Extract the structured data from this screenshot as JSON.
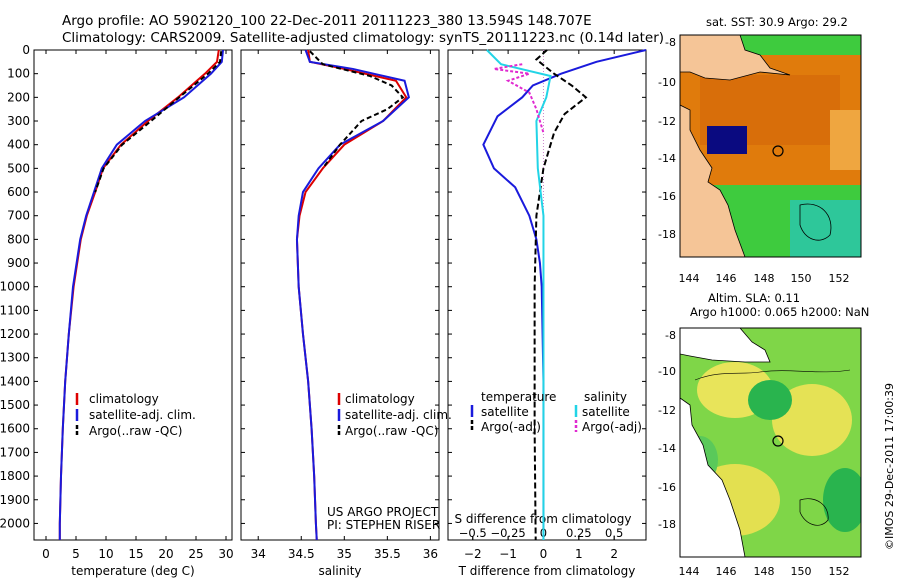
{
  "header": {
    "line1": "Argo profile: AO 5902120_100 22-Dec-2011 20111223_380 13.594S 148.707E",
    "line2": "Climatology: CARS2009. Satellite-adjusted climatology: synTS_20111223.nc (0.14d later)"
  },
  "credits": {
    "project": "US ARGO PROJECT",
    "pi": "PI: STEPHEN RISER",
    "imos": "©IMOS 29-Dec-2011 17:00:39"
  },
  "colors": {
    "climatology": "#dd0000",
    "satellite": "#1a1adc",
    "argo": "#000000",
    "sal_satellite": "#22d4e6",
    "sal_argo": "#e02ad0",
    "land": "#f5c597",
    "sst_warm": "#e07b0c",
    "sst_cool": "#3ecb3e"
  },
  "chart_data": [
    {
      "type": "line",
      "name": "temperature-profile",
      "xlabel": "temperature (deg C)",
      "ylabel": "",
      "xlim": [
        -2,
        31
      ],
      "ylim": [
        2070,
        0
      ],
      "xticks": [
        0,
        5,
        10,
        15,
        20,
        25,
        30
      ],
      "xtick_labels": [
        "0",
        "5",
        "10",
        "15",
        "20",
        "25",
        "30"
      ],
      "yticks": [
        0,
        100,
        200,
        300,
        400,
        500,
        600,
        700,
        800,
        900,
        1000,
        1100,
        1200,
        1300,
        1400,
        1500,
        1600,
        1700,
        1800,
        1900,
        2000
      ],
      "ytick_labels": [
        "0",
        "100",
        "200",
        "300",
        "400",
        "500",
        "600",
        "700",
        "800",
        "900",
        "1000",
        "1100",
        "1200",
        "1300",
        "1400",
        "1500",
        "1600",
        "1700",
        "1800",
        "1900",
        "2000"
      ],
      "legend": [
        "climatology",
        "satellite-adj. clim.",
        "Argo(..raw -QC)"
      ],
      "series": [
        {
          "name": "climatology",
          "color": "#dd0000",
          "dash": "",
          "x": [
            28.8,
            28.5,
            26.5,
            22,
            17,
            12.5,
            9.5,
            8.2,
            6.8,
            5.8,
            4.6,
            3.8,
            3.2,
            2.8,
            2.5,
            2.3,
            2.3
          ],
          "y": [
            0,
            50,
            100,
            200,
            300,
            400,
            500,
            600,
            700,
            800,
            1000,
            1200,
            1400,
            1600,
            1800,
            2000,
            2070
          ]
        },
        {
          "name": "satellite-adj. clim.",
          "color": "#1a1adc",
          "dash": "",
          "x": [
            29.5,
            29.3,
            27.5,
            23,
            16.5,
            11.8,
            9.3,
            8.0,
            6.7,
            5.7,
            4.5,
            3.8,
            3.2,
            2.8,
            2.5,
            2.3,
            2.3
          ],
          "y": [
            0,
            50,
            100,
            200,
            300,
            400,
            500,
            600,
            700,
            800,
            1000,
            1200,
            1400,
            1600,
            1800,
            2000,
            2070
          ]
        },
        {
          "name": "Argo(..raw -QC)",
          "color": "#000000",
          "dash": "5,3",
          "x": [
            29.2,
            29.0,
            27.0,
            22.2,
            17.5,
            12.7,
            9.6,
            8.2
          ],
          "y": [
            5,
            50,
            100,
            200,
            300,
            400,
            500,
            600
          ]
        }
      ]
    },
    {
      "type": "line",
      "name": "salinity-profile",
      "xlabel": "salinity",
      "xlim": [
        33.8,
        36.1
      ],
      "ylim": [
        2070,
        0
      ],
      "xticks": [
        34,
        34.5,
        35,
        35.5,
        36
      ],
      "xtick_labels": [
        "34",
        "34.5",
        "35",
        "35.5",
        "36"
      ],
      "legend": [
        "climatology",
        "satellite-adj. clim.",
        "Argo(..raw -QC)"
      ],
      "series": [
        {
          "name": "climatology",
          "color": "#dd0000",
          "dash": "",
          "x": [
            34.58,
            34.6,
            35.0,
            35.6,
            35.72,
            35.45,
            35.0,
            34.75,
            34.55,
            34.48,
            34.45,
            34.47,
            34.52,
            34.58,
            34.62,
            34.65,
            34.67,
            34.68
          ],
          "y": [
            0,
            50,
            80,
            130,
            200,
            300,
            400,
            500,
            600,
            700,
            800,
            1000,
            1200,
            1400,
            1600,
            1800,
            2000,
            2070
          ]
        },
        {
          "name": "satellite-adj. clim.",
          "color": "#1a1adc",
          "dash": "",
          "x": [
            34.55,
            34.6,
            35.1,
            35.7,
            35.75,
            35.45,
            34.95,
            34.7,
            34.52,
            34.47,
            34.45,
            34.47,
            34.52,
            34.58,
            34.62,
            34.65,
            34.67,
            34.68
          ],
          "y": [
            0,
            50,
            80,
            130,
            200,
            300,
            400,
            500,
            600,
            700,
            800,
            1000,
            1200,
            1400,
            1600,
            1800,
            2000,
            2070
          ]
        },
        {
          "name": "Argo(..raw -QC)",
          "color": "#000000",
          "dash": "5,3",
          "x": [
            34.6,
            34.75,
            35.3,
            35.55,
            35.68,
            35.5,
            35.2,
            34.95,
            34.75
          ],
          "y": [
            5,
            60,
            110,
            150,
            200,
            250,
            300,
            400,
            500
          ]
        }
      ]
    },
    {
      "type": "line",
      "name": "difference-profile",
      "xlabel": "T difference from climatology",
      "x2label": "S difference from climatology",
      "xlim": [
        -2.7,
        2.9
      ],
      "ylim": [
        2070,
        0
      ],
      "xticks": [
        -2,
        -1,
        0,
        1,
        2
      ],
      "xtick_labels": [
        "−2",
        "−1",
        "0",
        "1",
        "2"
      ],
      "x2ticks": [
        -0.5,
        -0.25,
        0,
        0.25,
        0.5
      ],
      "x2tick_labels": [
        "−0.5",
        "−0.25",
        "0",
        "0.25",
        "0.5"
      ],
      "legend_title_t": "temperature",
      "legend_title_s": "salinity",
      "legend": [
        "satellite",
        "Argo(-adj)",
        "satellite",
        "Argo(-adj)"
      ],
      "series": [
        {
          "name": "T satellite",
          "color": "#1a1adc",
          "dash": "",
          "x": [
            2.9,
            1.5,
            0.5,
            -0.3,
            -0.6,
            -1.3,
            -1.7,
            -1.4,
            -0.8,
            -0.4,
            -0.2,
            -0.1,
            -0.05,
            0,
            0
          ],
          "y": [
            0,
            50,
            100,
            150,
            200,
            280,
            400,
            500,
            580,
            700,
            800,
            900,
            1000,
            1400,
            2070
          ]
        },
        {
          "name": "T Argo(-adj)",
          "color": "#000000",
          "dash": "6,3",
          "x": [
            0.1,
            -0.2,
            0.3,
            0.8,
            1.2,
            0.6,
            0.3,
            0.0,
            -0.2,
            -0.25,
            -0.25,
            -0.22
          ],
          "y": [
            0,
            40,
            100,
            150,
            200,
            270,
            350,
            500,
            700,
            1000,
            1600,
            2070
          ]
        },
        {
          "name": "S satellite",
          "color": "#22d4e6",
          "dash": "",
          "x": [
            -0.4,
            -0.3,
            0.05,
            0.02,
            -0.05,
            -0.04,
            0.0,
            0.0
          ],
          "y": [
            0,
            60,
            110,
            200,
            300,
            500,
            700,
            2070
          ]
        },
        {
          "name": "S Argo(-adj)",
          "color": "#e02ad0",
          "dash": "3,2",
          "x": [
            -0.15,
            -0.35,
            -0.1,
            -0.25,
            -0.1,
            -0.05,
            0.0
          ],
          "y": [
            60,
            80,
            100,
            130,
            180,
            250,
            350
          ]
        }
      ]
    }
  ],
  "maps": {
    "sst": {
      "title": "sat. SST: 30.9  Argo: 29.2",
      "yticks": [
        "-8",
        "-10",
        "-12",
        "-14",
        "-16",
        "-18"
      ],
      "xticks": [
        "144",
        "146",
        "148",
        "150",
        "152"
      ]
    },
    "sla": {
      "title1": "Altim. SLA: 0.11",
      "title2": "Argo h1000: 0.065  h2000: NaN",
      "yticks": [
        "-8",
        "-10",
        "-12",
        "-14",
        "-16",
        "-18"
      ],
      "xticks": [
        "144",
        "146",
        "148",
        "150",
        "152"
      ]
    }
  }
}
